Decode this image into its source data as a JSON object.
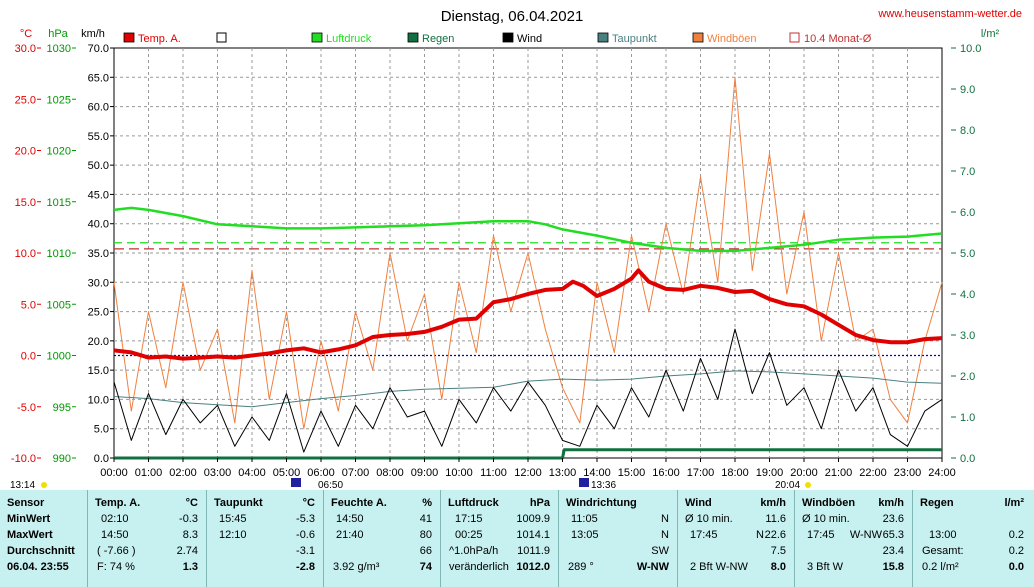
{
  "header": {
    "title": "Dienstag, 06.04.2021",
    "website": "www.heusenstamm-wetter.de"
  },
  "axis_units": {
    "temp": "°C",
    "pressure": "hPa",
    "wind": "km/h",
    "rain": "l/m²"
  },
  "legend": [
    {
      "label": "Temp. A.",
      "color": "#e00000",
      "style": "filled"
    },
    {
      "label": "",
      "color": "#ffffff",
      "style": "outline"
    },
    {
      "label": "Luftdruck",
      "color": "#22dd22",
      "style": "filled"
    },
    {
      "label": "Regen",
      "color": "#107040",
      "style": "filled"
    },
    {
      "label": "Wind",
      "color": "#000000",
      "style": "filled"
    },
    {
      "label": "Taupunkt",
      "color": "#4a8080",
      "style": "filled"
    },
    {
      "label": "Windböen",
      "color": "#f08040",
      "style": "filled"
    },
    {
      "label": "10.4 Monat-Ø",
      "color": "#c03030",
      "style": "outline"
    }
  ],
  "chart_data": {
    "type": "line",
    "title": "Dienstag, 06.04.2021",
    "x_tick_labels": [
      "00:00",
      "01:00",
      "02:00",
      "03:00",
      "04:00",
      "05:00",
      "06:00",
      "07:00",
      "08:00",
      "09:00",
      "10:00",
      "11:00",
      "12:00",
      "13:00",
      "14:00",
      "15:00",
      "16:00",
      "17:00",
      "18:00",
      "19:00",
      "20:00",
      "21:00",
      "22:00",
      "23:00",
      "24:00"
    ],
    "x_range_hours": [
      0,
      24
    ],
    "axes": {
      "temp_ticks": [
        "30.0",
        "25.0",
        "20.0",
        "15.0",
        "10.0",
        "5.0",
        "0.0",
        "-5.0",
        "-10.0"
      ],
      "temp_range": [
        -10,
        30
      ],
      "pressure_ticks": [
        "1030",
        "1025",
        "1020",
        "1015",
        "1010",
        "1005",
        "1000",
        "995",
        "990"
      ],
      "pressure_range": [
        990,
        1030
      ],
      "wind_ticks": [
        "70.0",
        "65.0",
        "60.0",
        "55.0",
        "50.0",
        "45.0",
        "40.0",
        "35.0",
        "30.0",
        "25.0",
        "20.0",
        "15.0",
        "10.0",
        "5.0",
        "0.0"
      ],
      "wind_range": [
        0,
        70
      ],
      "rain_ticks": [
        "10.0",
        "9.0",
        "8.0",
        "7.0",
        "6.0",
        "5.0",
        "4.0",
        "3.0",
        "2.0",
        "1.0",
        "0.0"
      ],
      "rain_range": [
        0,
        10
      ]
    },
    "grid": true,
    "reference_lines": [
      {
        "name": "10.4 Monat-Ø",
        "axis": "temp",
        "value": 10.4,
        "color": "#c03030"
      },
      {
        "axis": "pressure",
        "value": 1011.0,
        "color": "#22dd22"
      },
      {
        "axis": "temp",
        "value": 0.0,
        "color": "#0000cc"
      }
    ],
    "series": [
      {
        "name": "Temp. A.",
        "axis": "temp",
        "color": "#e00000",
        "x": [
          0,
          0.5,
          1,
          1.5,
          2,
          2.5,
          3,
          3.5,
          4,
          4.5,
          5,
          5.5,
          6,
          6.5,
          7,
          7.5,
          8,
          8.5,
          9,
          9.5,
          10,
          10.5,
          11,
          11.5,
          12,
          12.5,
          13,
          13.3,
          13.6,
          14,
          14.5,
          15,
          15.2,
          15.5,
          16,
          16.5,
          17,
          17.5,
          18,
          18.5,
          19,
          19.5,
          20,
          20.5,
          21,
          21.5,
          22,
          22.5,
          23,
          23.5,
          24
        ],
        "y": [
          0.5,
          0.3,
          -0.2,
          -0.1,
          -0.3,
          -0.2,
          -0.1,
          -0.2,
          0.0,
          0.2,
          0.5,
          0.7,
          0.3,
          0.6,
          1.0,
          1.8,
          2.0,
          2.1,
          2.3,
          2.8,
          3.5,
          3.6,
          5.2,
          5.5,
          6.0,
          6.4,
          6.5,
          7.2,
          6.8,
          5.8,
          6.5,
          7.5,
          8.3,
          7.2,
          6.5,
          6.4,
          6.8,
          6.6,
          6.2,
          6.3,
          5.5,
          5.0,
          4.8,
          4.0,
          3.0,
          2.0,
          1.5,
          1.3,
          1.3,
          1.6,
          1.7
        ]
      },
      {
        "name": "Luftdruck",
        "axis": "pressure",
        "color": "#22dd22",
        "x": [
          0,
          0.5,
          1,
          2,
          3,
          4,
          5,
          6,
          7,
          8,
          9,
          10,
          11,
          12,
          12.5,
          13,
          14,
          15,
          16,
          17,
          18,
          19,
          20,
          21,
          22,
          23,
          24
        ],
        "y": [
          1014.2,
          1014.4,
          1014.2,
          1013.6,
          1012.8,
          1012.6,
          1012.4,
          1012.4,
          1012.5,
          1012.6,
          1012.7,
          1012.9,
          1013.1,
          1013.1,
          1012.8,
          1012.3,
          1011.7,
          1011.0,
          1010.5,
          1010.2,
          1010.2,
          1010.5,
          1010.8,
          1011.3,
          1011.5,
          1011.6,
          1011.9
        ]
      },
      {
        "name": "Taupunkt",
        "axis": "temp",
        "color": "#4a8080",
        "x": [
          0,
          1,
          2,
          3,
          4,
          5,
          6,
          7,
          8,
          9,
          10,
          11,
          12,
          13,
          14,
          15,
          16,
          17,
          18,
          19,
          20,
          21,
          22,
          23,
          24
        ],
        "y": [
          -4.0,
          -4.2,
          -4.6,
          -4.8,
          -5.0,
          -4.6,
          -4.2,
          -3.9,
          -3.5,
          -3.3,
          -3.2,
          -3.1,
          -2.5,
          -2.3,
          -2.4,
          -2.3,
          -2.0,
          -1.8,
          -1.5,
          -1.6,
          -1.8,
          -2.0,
          -2.2,
          -2.6,
          -2.7
        ]
      },
      {
        "name": "Wind",
        "axis": "wind",
        "color": "#000000",
        "x": [
          0,
          0.5,
          1,
          1.5,
          2,
          2.5,
          3,
          3.5,
          4,
          4.5,
          5,
          5.5,
          6,
          6.5,
          7,
          7.5,
          8,
          8.5,
          9,
          9.5,
          10,
          10.5,
          11,
          11.5,
          12,
          12.5,
          13,
          13.5,
          14,
          14.5,
          15,
          15.5,
          16,
          16.5,
          17,
          17.5,
          18,
          18.5,
          19,
          19.5,
          20,
          20.5,
          21,
          21.5,
          22,
          22.5,
          23,
          23.5,
          24
        ],
        "y": [
          13,
          3,
          11,
          4,
          10,
          6,
          9,
          2,
          7,
          3,
          11,
          1,
          8,
          2,
          9,
          5,
          12,
          7,
          8,
          2,
          10,
          6,
          12,
          8,
          13,
          9,
          3,
          2,
          9,
          5,
          12,
          7,
          15,
          8,
          17,
          10,
          22,
          11,
          18,
          9,
          12,
          5,
          15,
          8,
          12,
          4,
          2,
          8,
          10
        ]
      },
      {
        "name": "Windböen",
        "axis": "wind",
        "color": "#f08040",
        "x": [
          0,
          0.5,
          1,
          1.5,
          2,
          2.5,
          3,
          3.5,
          4,
          4.5,
          5,
          5.5,
          6,
          6.5,
          7,
          7.5,
          8,
          8.5,
          9,
          9.5,
          10,
          10.5,
          11,
          11.5,
          12,
          12.5,
          13,
          13.5,
          14,
          14.5,
          15,
          15.5,
          16,
          16.5,
          17,
          17.5,
          18,
          18.5,
          19,
          19.5,
          20,
          20.5,
          21,
          21.5,
          22,
          22.5,
          23,
          23.5,
          24
        ],
        "y": [
          30,
          8,
          25,
          12,
          30,
          15,
          22,
          6,
          32,
          10,
          25,
          5,
          20,
          8,
          25,
          15,
          35,
          20,
          28,
          10,
          30,
          18,
          38,
          25,
          35,
          22,
          12,
          6,
          30,
          18,
          38,
          25,
          40,
          28,
          48,
          30,
          65,
          32,
          52,
          28,
          42,
          20,
          35,
          20,
          22,
          10,
          6,
          20,
          30
        ]
      },
      {
        "name": "Regen",
        "axis": "rain",
        "color": "#107040",
        "x": [
          0,
          13,
          13.05,
          24
        ],
        "y": [
          0,
          0,
          0.2,
          0.2
        ]
      }
    ]
  },
  "time_markers": {
    "left": "13:14",
    "sunrise": "06:50",
    "mid": "13:36",
    "right": "20:04"
  },
  "stats": {
    "sensor": {
      "header": "Sensor",
      "min": "MinWert",
      "max": "MaxWert",
      "avg": "Durchschnitt",
      "now": "06.04. 23:55"
    },
    "temp": {
      "header": "Temp. A.",
      "unit": "°C",
      "min_time": "02:10",
      "min_val": "-0.3",
      "max_time": "14:50",
      "max_val": "8.3",
      "avg_note": "( -7.66 )",
      "avg_val": "2.74",
      "now_note": "F: 74 %",
      "now_val": "1.3"
    },
    "dew": {
      "header": "Taupunkt",
      "unit": "°C",
      "min_time": "15:45",
      "min_val": "-5.3",
      "max_time": "12:10",
      "max_val": "-0.6",
      "avg_val": "-3.1",
      "now_val": "-2.8"
    },
    "hum": {
      "header": "Feuchte A.",
      "unit": "%",
      "min_time": "14:50",
      "min_val": "41",
      "max_time": "21:40",
      "max_val": "80",
      "avg_val": "66",
      "now_note": "3.92 g/m³",
      "now_val": "74"
    },
    "pressure": {
      "header": "Luftdruck",
      "unit": "hPa",
      "min_time": "17:15",
      "min_val": "1009.9",
      "max_time": "00:25",
      "max_val": "1014.1",
      "avg_note": "^1.0hPa/h",
      "avg_val": "1011.9",
      "now_note": "veränderlich",
      "now_val": "1012.0"
    },
    "winddir": {
      "header": "Windrichtung",
      "min_time": "11:05",
      "min_val": "N",
      "max_time": "13:05",
      "max_val": "N",
      "avg_val": "SW",
      "now_note": "289 °",
      "now_val": "W-NW"
    },
    "wind": {
      "header": "Wind",
      "unit": "km/h",
      "min_time": "Ø 10 min.",
      "min_val": "11.6",
      "max_time": "17:45",
      "max_dir": "N",
      "max_val": "22.6",
      "avg_val": "7.5",
      "now_note": "2 Bft W-NW",
      "now_val": "8.0"
    },
    "gust": {
      "header": "Windböen",
      "unit": "km/h",
      "min_time": "Ø 10 min.",
      "min_val": "23.6",
      "max_time": "17:45",
      "max_dir": "W-NW",
      "max_val": "65.3",
      "avg_val": "23.4",
      "now_note": "3 Bft W",
      "now_val": "15.8"
    },
    "rain": {
      "header": "Regen",
      "unit": "l/m²",
      "max_time": "13:00",
      "max_val": "0.2",
      "avg_note": "Gesamt:",
      "avg_val": "0.2",
      "now_note": "0.2 l/m²",
      "now_val": "0.0"
    }
  }
}
